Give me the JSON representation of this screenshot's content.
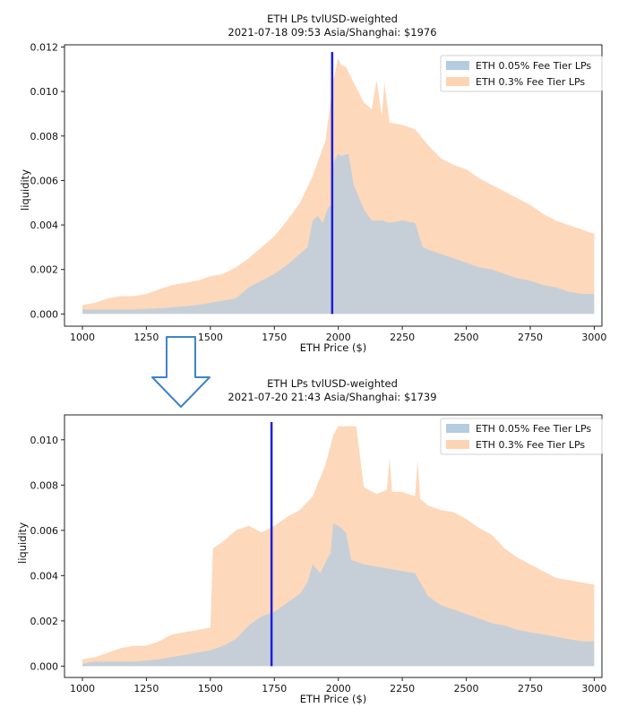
{
  "colors": {
    "fee005": "#b3cce0",
    "fee03": "#fdd4b3",
    "price_line": "#1f1fd6",
    "arrow": "#3d84c8",
    "axis": "#222222"
  },
  "chart_data": [
    {
      "type": "area",
      "title": "ETH LPs tvlUSD-weighted",
      "subtitle": "2021-07-18 09:53 Asia/Shanghai: $1976",
      "xlabel": "ETH Price ($)",
      "ylabel": "liquidity",
      "xlim": [
        930,
        3030
      ],
      "ylim": [
        -0.00055,
        0.0121
      ],
      "xticks": [
        1000,
        1250,
        1500,
        1750,
        2000,
        2250,
        2500,
        2750,
        3000
      ],
      "yticks": [
        0.0,
        0.002,
        0.004,
        0.006,
        0.008,
        0.01,
        0.012
      ],
      "xtick_labels": [
        "1000",
        "1250",
        "1500",
        "1750",
        "2000",
        "2250",
        "2500",
        "2750",
        "3000"
      ],
      "ytick_labels": [
        "0.000",
        "0.002",
        "0.004",
        "0.006",
        "0.008",
        "0.010",
        "0.012"
      ],
      "current_price": 1976,
      "legend": {
        "position": "top-right",
        "entries": [
          "ETH 0.05% Fee Tier LPs",
          "ETH 0.3% Fee Tier LPs"
        ]
      },
      "series": [
        {
          "name": "ETH 0.05% Fee Tier LPs",
          "x": [
            1000,
            1050,
            1100,
            1150,
            1200,
            1250,
            1300,
            1350,
            1400,
            1450,
            1500,
            1550,
            1600,
            1650,
            1700,
            1750,
            1800,
            1850,
            1880,
            1900,
            1920,
            1940,
            1960,
            1975,
            1980,
            2000,
            2010,
            2040,
            2060,
            2100,
            2130,
            2170,
            2200,
            2250,
            2300,
            2330,
            2350,
            2400,
            2450,
            2500,
            2550,
            2600,
            2650,
            2700,
            2750,
            2800,
            2850,
            2900,
            2950,
            3000
          ],
          "y": [
            0.0002,
            0.0002,
            0.0002,
            0.0002,
            0.0002,
            0.00022,
            0.00025,
            0.0003,
            0.00035,
            0.0004,
            0.0005,
            0.0006,
            0.0007,
            0.0012,
            0.0015,
            0.0018,
            0.0022,
            0.0027,
            0.003,
            0.0042,
            0.0044,
            0.0041,
            0.0048,
            0.0049,
            0.0068,
            0.0072,
            0.0071,
            0.0072,
            0.0058,
            0.0047,
            0.0042,
            0.0042,
            0.0041,
            0.0042,
            0.0041,
            0.003,
            0.0029,
            0.0027,
            0.0025,
            0.0023,
            0.0021,
            0.002,
            0.0018,
            0.0016,
            0.0015,
            0.0013,
            0.0012,
            0.001,
            0.0009,
            0.0009
          ]
        },
        {
          "name": "ETH 0.3% Fee Tier LPs",
          "x": [
            1000,
            1050,
            1100,
            1150,
            1200,
            1250,
            1300,
            1350,
            1400,
            1450,
            1500,
            1550,
            1600,
            1650,
            1700,
            1750,
            1800,
            1850,
            1900,
            1950,
            1980,
            2000,
            2010,
            2030,
            2060,
            2100,
            2130,
            2150,
            2170,
            2180,
            2200,
            2250,
            2300,
            2350,
            2400,
            2450,
            2500,
            2550,
            2600,
            2650,
            2700,
            2750,
            2800,
            2850,
            2900,
            2950,
            3000
          ],
          "y": [
            0.0004,
            0.0005,
            0.0007,
            0.0008,
            0.0008,
            0.0009,
            0.0011,
            0.0013,
            0.0014,
            0.0015,
            0.0017,
            0.0018,
            0.0021,
            0.0025,
            0.003,
            0.0035,
            0.0042,
            0.005,
            0.0062,
            0.0078,
            0.0105,
            0.0115,
            0.0112,
            0.0111,
            0.0104,
            0.0095,
            0.0092,
            0.0105,
            0.0089,
            0.0104,
            0.0086,
            0.0085,
            0.0083,
            0.0076,
            0.007,
            0.0067,
            0.0065,
            0.0061,
            0.0058,
            0.0055,
            0.0052,
            0.0049,
            0.0045,
            0.0042,
            0.004,
            0.0038,
            0.0036
          ]
        }
      ]
    },
    {
      "type": "area",
      "title": "ETH LPs tvlUSD-weighted",
      "subtitle": "2021-07-20 21:43 Asia/Shanghai: $1739",
      "xlabel": "ETH Price ($)",
      "ylabel": "liquidity",
      "xlim": [
        930,
        3030
      ],
      "ylim": [
        -0.0005,
        0.0111
      ],
      "xticks": [
        1000,
        1250,
        1500,
        1750,
        2000,
        2250,
        2500,
        2750,
        3000
      ],
      "yticks": [
        0.0,
        0.002,
        0.004,
        0.006,
        0.008,
        0.01
      ],
      "xtick_labels": [
        "1000",
        "1250",
        "1500",
        "1750",
        "2000",
        "2250",
        "2500",
        "2750",
        "3000"
      ],
      "ytick_labels": [
        "0.000",
        "0.002",
        "0.004",
        "0.006",
        "0.008",
        "0.010"
      ],
      "current_price": 1739,
      "legend": {
        "position": "top-right",
        "entries": [
          "ETH 0.05% Fee Tier LPs",
          "ETH 0.3% Fee Tier LPs"
        ]
      },
      "series": [
        {
          "name": "ETH 0.05% Fee Tier LPs",
          "x": [
            1000,
            1050,
            1100,
            1150,
            1200,
            1250,
            1300,
            1350,
            1400,
            1450,
            1500,
            1550,
            1600,
            1650,
            1700,
            1750,
            1800,
            1850,
            1880,
            1900,
            1930,
            1950,
            1970,
            1980,
            2000,
            2030,
            2050,
            2100,
            2150,
            2200,
            2250,
            2300,
            2350,
            2400,
            2450,
            2500,
            2550,
            2600,
            2650,
            2700,
            2750,
            2800,
            2850,
            2900,
            2950,
            3000
          ],
          "y": [
            0.0001,
            0.0002,
            0.0002,
            0.0002,
            0.0002,
            0.00025,
            0.0003,
            0.0004,
            0.0005,
            0.0006,
            0.0007,
            0.0009,
            0.0012,
            0.0018,
            0.0022,
            0.0024,
            0.0028,
            0.0032,
            0.0037,
            0.0045,
            0.0041,
            0.0046,
            0.005,
            0.0063,
            0.0062,
            0.0059,
            0.0047,
            0.0045,
            0.0044,
            0.0043,
            0.0042,
            0.0041,
            0.0031,
            0.0027,
            0.0025,
            0.0023,
            0.0021,
            0.0019,
            0.0018,
            0.0016,
            0.0015,
            0.0014,
            0.0013,
            0.0012,
            0.0011,
            0.0011
          ]
        },
        {
          "name": "ETH 0.3% Fee Tier LPs",
          "x": [
            1000,
            1050,
            1100,
            1150,
            1200,
            1250,
            1300,
            1350,
            1400,
            1450,
            1500,
            1510,
            1550,
            1600,
            1650,
            1700,
            1750,
            1800,
            1850,
            1900,
            1950,
            1980,
            2000,
            2050,
            2070,
            2100,
            2150,
            2190,
            2200,
            2210,
            2250,
            2300,
            2310,
            2320,
            2350,
            2400,
            2450,
            2500,
            2550,
            2600,
            2650,
            2700,
            2750,
            2800,
            2850,
            2900,
            2950,
            3000
          ],
          "y": [
            0.0003,
            0.0004,
            0.0006,
            0.0008,
            0.0009,
            0.0009,
            0.0011,
            0.0014,
            0.0015,
            0.0016,
            0.0017,
            0.0052,
            0.0055,
            0.006,
            0.0062,
            0.0059,
            0.0062,
            0.0066,
            0.0069,
            0.0075,
            0.0089,
            0.0102,
            0.0106,
            0.0106,
            0.0106,
            0.0079,
            0.0076,
            0.0078,
            0.0092,
            0.0077,
            0.0077,
            0.0075,
            0.0091,
            0.0074,
            0.0071,
            0.0069,
            0.0068,
            0.0065,
            0.0061,
            0.0058,
            0.0052,
            0.0048,
            0.0045,
            0.0042,
            0.0039,
            0.0038,
            0.0037,
            0.0036
          ]
        }
      ]
    }
  ]
}
